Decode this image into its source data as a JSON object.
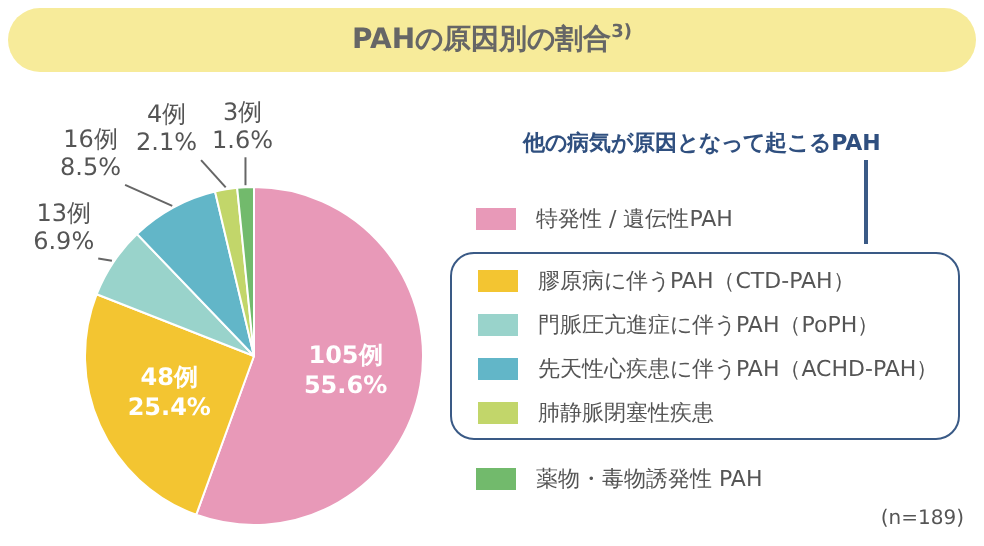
{
  "chart_data": {
    "type": "pie",
    "title": "PAHの原因別の割合$^{3)}$",
    "categories": [
      "特発性 / 遺伝性PAH",
      "膠原病に伴うPAH（CTD-PAH）",
      "門脈圧亢進症に伴うPAH（PoPH）",
      "先天性心疾患に伴うPAH（ACHD-PAH）",
      "肺静脈閉塞性疾患",
      "薬物・毒物誘発性 PAH"
    ],
    "values": [
      105,
      48,
      13,
      16,
      4,
      3
    ],
    "colors": [
      "#e899b8",
      "#f3c531",
      "#99d3cb",
      "#62b6c8",
      "#c2d66a",
      "#72ba6c"
    ],
    "value_labels": [
      "105例\n55.6%",
      "48例\n25.4%",
      "13例\n6.9%",
      "16例\n8.5%",
      "4例\n2.1%",
      "3例\n1.6%"
    ],
    "legend": "right",
    "annotations": [
      "他の病気が原因となって起こるPAH",
      "(n=189)"
    ]
  }
}
